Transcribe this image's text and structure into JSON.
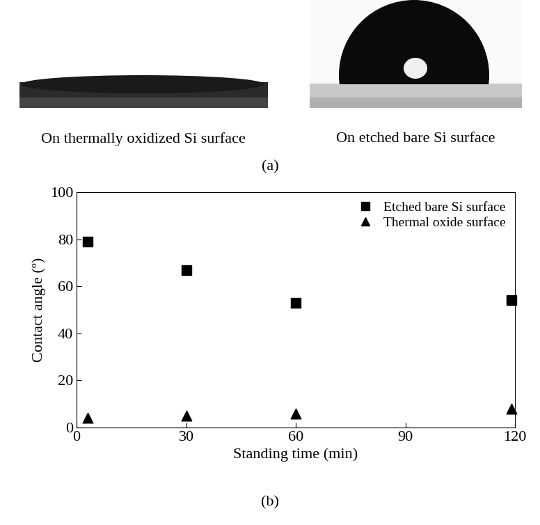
{
  "panel_a": {
    "label": "(a)",
    "images": [
      {
        "caption": "On thermally oxidized Si surface"
      },
      {
        "caption": "On etched bare Si surface"
      }
    ]
  },
  "chart_data": {
    "type": "scatter",
    "caption": "(b)",
    "x_label": "Standing time (min)",
    "y_label": "Contact angle (º)",
    "x": [
      3,
      30,
      60,
      119
    ],
    "series": [
      {
        "name": "Etched bare Si surface",
        "color": "#000000",
        "marker": "square",
        "values": [
          79,
          67,
          53,
          54
        ]
      },
      {
        "name": "Thermal oxide surface",
        "color": "#000000",
        "marker": "triangle",
        "values": [
          4,
          5,
          6,
          8
        ]
      }
    ],
    "xlim": [
      0,
      120
    ],
    "xticks": [
      0,
      30,
      60,
      90,
      120
    ],
    "ylim": [
      0,
      100
    ],
    "yticks": [
      0,
      20,
      40,
      60,
      80,
      100
    ],
    "grid": false,
    "legend": "upper right"
  }
}
